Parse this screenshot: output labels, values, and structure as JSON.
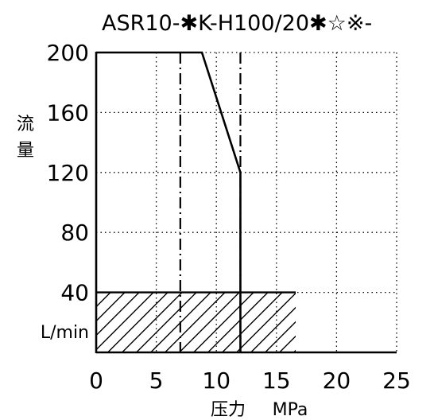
{
  "chart_data": {
    "type": "line",
    "title": "ASR10-✱K-H100/20✱☆※-",
    "ylabel_chars": [
      "流",
      "量"
    ],
    "yunit": "L/min",
    "xlabel": "压力",
    "xunit": "MPa",
    "xlim": [
      0,
      25
    ],
    "ylim": [
      0,
      200
    ],
    "xticks": [
      "0",
      "5",
      "10",
      "15",
      "20",
      "25"
    ],
    "yticks": [
      "200",
      "160",
      "120",
      "80",
      "40"
    ],
    "grid": true,
    "grid_style": "dotted",
    "series": [
      {
        "style": "solid",
        "x": [
          0,
          8.8,
          12.0,
          12.0
        ],
        "y": [
          200,
          200,
          120,
          0
        ]
      }
    ],
    "reference_lines": [
      {
        "orientation": "vertical",
        "x": 7.0,
        "style": "dash-dot"
      },
      {
        "orientation": "vertical",
        "x": 12.0,
        "style": "dash-dot"
      }
    ],
    "hatched_region": {
      "x": [
        0,
        16.6
      ],
      "y": [
        0,
        40
      ]
    },
    "baseline": {
      "x": [
        0,
        25
      ],
      "y": 0
    }
  }
}
